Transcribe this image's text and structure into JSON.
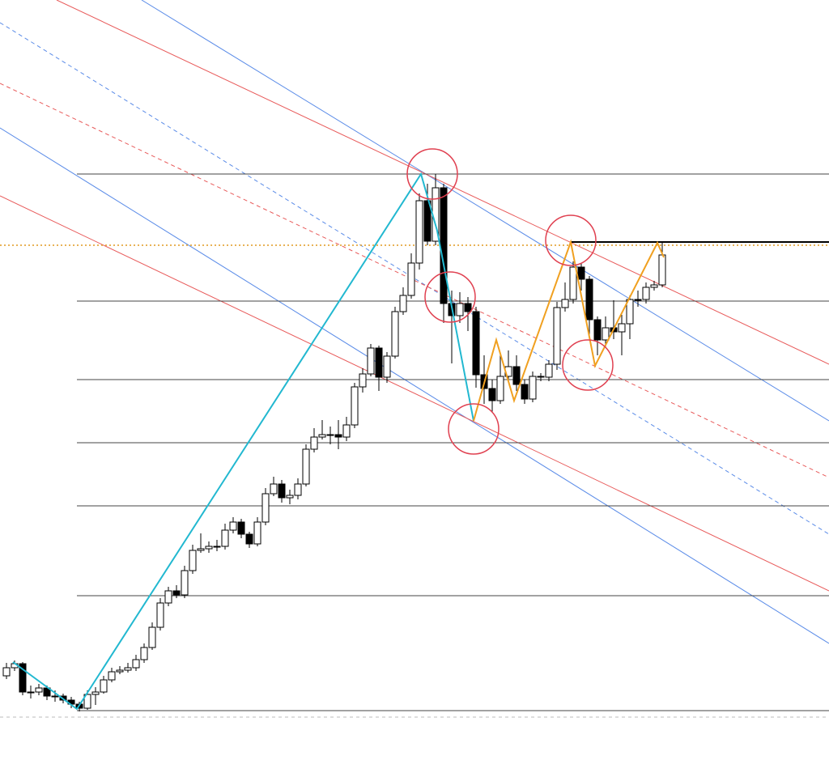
{
  "chart_data": {
    "type": "candlestick",
    "ylim": [
      0,
      939
    ],
    "levels": [
      724,
      567,
      470,
      392,
      314,
      203,
      61
    ],
    "resistance": 640,
    "current_price": 636,
    "open": [
      104,
      114,
      119,
      84,
      84,
      89,
      79,
      79,
      74,
      69,
      64,
      81,
      84,
      99,
      109,
      111,
      114,
      124,
      139,
      164,
      194,
      209,
      204,
      234,
      259,
      261,
      264,
      264,
      284,
      294,
      279,
      267,
      294,
      329,
      341,
      324,
      327,
      341,
      384,
      399,
      402,
      402,
      399,
      414,
      461,
      477,
      509,
      473,
      499,
      554,
      574,
      614,
      691,
      641,
      707,
      564,
      549,
      564,
      554,
      476,
      459,
      444,
      474,
      486,
      464,
      446,
      474,
      473,
      489,
      559,
      569,
      609,
      594,
      544,
      519,
      534,
      529,
      539,
      569,
      569,
      584,
      587
    ],
    "high": [
      120,
      123,
      121,
      92,
      94,
      92,
      86,
      82,
      78,
      72,
      86,
      90,
      104,
      114,
      116,
      120,
      130,
      144,
      170,
      200,
      214,
      216,
      240,
      266,
      280,
      270,
      272,
      292,
      300,
      298,
      282,
      300,
      336,
      350,
      346,
      334,
      348,
      390,
      410,
      420,
      412,
      420,
      424,
      466,
      484,
      514,
      512,
      504,
      560,
      584,
      626,
      700,
      712,
      724,
      712,
      580,
      578,
      572,
      560,
      500,
      470,
      500,
      506,
      500,
      470,
      480,
      478,
      494,
      566,
      590,
      616,
      614,
      598,
      548,
      548,
      568,
      550,
      574,
      580,
      590,
      592,
      640
    ],
    "low": [
      100,
      110,
      80,
      76,
      80,
      74,
      72,
      70,
      64,
      60,
      62,
      68,
      82,
      96,
      106,
      108,
      110,
      120,
      136,
      160,
      190,
      200,
      200,
      230,
      256,
      256,
      258,
      260,
      280,
      274,
      262,
      264,
      290,
      326,
      318,
      316,
      322,
      338,
      380,
      396,
      390,
      384,
      394,
      410,
      454,
      474,
      456,
      466,
      496,
      550,
      570,
      606,
      636,
      636,
      540,
      490,
      540,
      530,
      460,
      440,
      430,
      440,
      466,
      456,
      440,
      442,
      468,
      468,
      482,
      554,
      564,
      580,
      520,
      500,
      510,
      520,
      500,
      520,
      560,
      564,
      580,
      584
    ],
    "close": [
      114,
      119,
      84,
      84,
      89,
      79,
      79,
      74,
      69,
      64,
      81,
      84,
      99,
      109,
      111,
      114,
      124,
      139,
      164,
      194,
      209,
      204,
      234,
      259,
      261,
      264,
      264,
      284,
      294,
      279,
      267,
      294,
      329,
      341,
      324,
      327,
      341,
      384,
      399,
      402,
      402,
      399,
      414,
      461,
      477,
      509,
      473,
      499,
      554,
      574,
      614,
      691,
      641,
      707,
      564,
      549,
      564,
      554,
      476,
      459,
      444,
      474,
      486,
      464,
      446,
      474,
      473,
      489,
      559,
      569,
      609,
      594,
      544,
      519,
      534,
      529,
      539,
      569,
      569,
      584,
      587,
      624
    ],
    "up_color": "#ffffff",
    "down_color": "#000000",
    "line_color": "#000000"
  }
}
